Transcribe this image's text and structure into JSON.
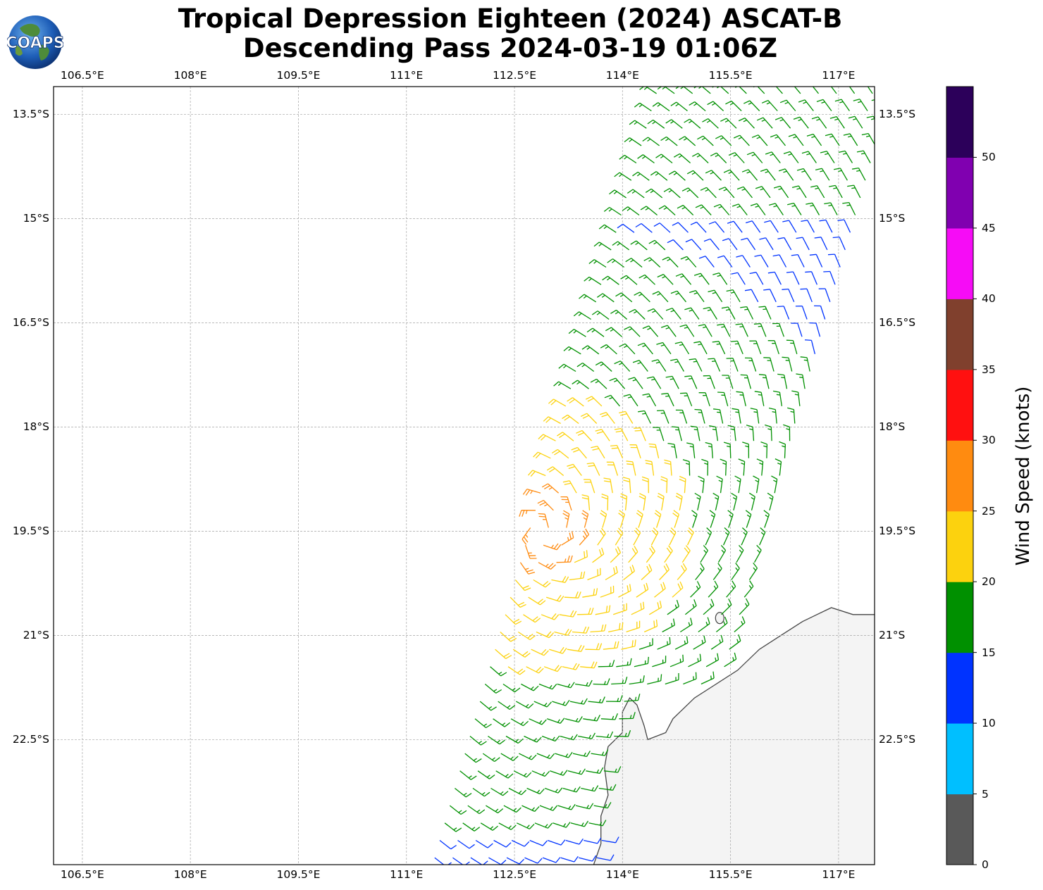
{
  "title": {
    "line1": "Tropical Depression Eighteen (2024) ASCAT-B",
    "line2": "Descending Pass 2024-03-19 01:06Z"
  },
  "logo": {
    "text": "COAPS"
  },
  "map": {
    "lon_range": [
      106.1,
      117.5
    ],
    "lat_range": [
      -24.3,
      -13.1
    ],
    "lon_ticks": [
      "106.5°E",
      "108°E",
      "109.5°E",
      "111°E",
      "112.5°E",
      "114°E",
      "115.5°E",
      "117°E"
    ],
    "lon_values": [
      106.5,
      108,
      109.5,
      111,
      112.5,
      114,
      115.5,
      117
    ],
    "lat_ticks": [
      "13.5°S",
      "15°S",
      "16.5°S",
      "18°S",
      "19.5°S",
      "21°S",
      "22.5°S"
    ],
    "lat_values": [
      -13.5,
      -15,
      -16.5,
      -18,
      -19.5,
      -21,
      -22.5
    ],
    "grid": true,
    "land_color": "#f4f4f4",
    "coast_color": "#444444"
  },
  "colorbar": {
    "label": "Wind Speed (knots)",
    "ticks": [
      "0",
      "5",
      "10",
      "15",
      "20",
      "25",
      "30",
      "35",
      "40",
      "45",
      "50"
    ],
    "bins": [
      {
        "min": 0,
        "max": 5,
        "color": "#595959"
      },
      {
        "min": 5,
        "max": 10,
        "color": "#00bfff"
      },
      {
        "min": 10,
        "max": 15,
        "color": "#0033ff"
      },
      {
        "min": 15,
        "max": 20,
        "color": "#009000"
      },
      {
        "min": 20,
        "max": 25,
        "color": "#fcd20e"
      },
      {
        "min": 25,
        "max": 30,
        "color": "#ff8b10"
      },
      {
        "min": 30,
        "max": 35,
        "color": "#ff1010"
      },
      {
        "min": 35,
        "max": 40,
        "color": "#80402d"
      },
      {
        "min": 40,
        "max": 45,
        "color": "#f60cf6"
      },
      {
        "min": 45,
        "max": 50,
        "color": "#8000b0"
      },
      {
        "min": 50,
        "max": 55,
        "color": "#2c005a"
      }
    ]
  },
  "wind_field": {
    "swath_description": "ASCAT-B descending swath of wind barbs",
    "center_lon": 112.9,
    "center_lat": -19.5
  }
}
